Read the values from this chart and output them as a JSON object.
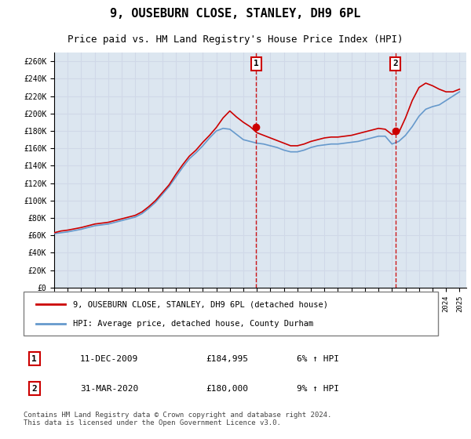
{
  "title": "9, OUSEBURN CLOSE, STANLEY, DH9 6PL",
  "subtitle": "Price paid vs. HM Land Registry's House Price Index (HPI)",
  "ylabel_ticks": [
    "£0",
    "£20K",
    "£40K",
    "£60K",
    "£80K",
    "£100K",
    "£120K",
    "£140K",
    "£160K",
    "£180K",
    "£200K",
    "£220K",
    "£240K",
    "£260K"
  ],
  "ylim": [
    0,
    270000
  ],
  "yticks": [
    0,
    20000,
    40000,
    60000,
    80000,
    100000,
    120000,
    140000,
    160000,
    180000,
    200000,
    220000,
    240000,
    260000
  ],
  "xlim_start": 1995,
  "xlim_end": 2025.5,
  "xticks": [
    1995,
    1996,
    1997,
    1998,
    1999,
    2000,
    2001,
    2002,
    2003,
    2004,
    2005,
    2006,
    2007,
    2008,
    2009,
    2010,
    2011,
    2012,
    2013,
    2014,
    2015,
    2016,
    2017,
    2018,
    2019,
    2020,
    2021,
    2022,
    2023,
    2024,
    2025
  ],
  "grid_color": "#d0d8e8",
  "bg_color": "#e8eef8",
  "plot_bg": "#dce6f0",
  "sale1_x": 2009.95,
  "sale1_y": 184995,
  "sale1_label": "1",
  "sale1_date": "11-DEC-2009",
  "sale1_price": "£184,995",
  "sale1_hpi": "6% ↑ HPI",
  "sale2_x": 2020.25,
  "sale2_y": 180000,
  "sale2_label": "2",
  "sale2_date": "31-MAR-2020",
  "sale2_price": "£180,000",
  "sale2_hpi": "9% ↑ HPI",
  "line_red_color": "#cc0000",
  "line_blue_color": "#6699cc",
  "legend_label_red": "9, OUSEBURN CLOSE, STANLEY, DH9 6PL (detached house)",
  "legend_label_blue": "HPI: Average price, detached house, County Durham",
  "footer": "Contains HM Land Registry data © Crown copyright and database right 2024.\nThis data is licensed under the Open Government Licence v3.0.",
  "hpi_years": [
    1995,
    1995.5,
    1996,
    1996.5,
    1997,
    1997.5,
    1998,
    1998.5,
    1999,
    1999.5,
    2000,
    2000.5,
    2001,
    2001.5,
    2002,
    2002.5,
    2003,
    2003.5,
    2004,
    2004.5,
    2005,
    2005.5,
    2006,
    2006.5,
    2007,
    2007.5,
    2008,
    2008.5,
    2009,
    2009.5,
    2010,
    2010.5,
    2011,
    2011.5,
    2012,
    2012.5,
    2013,
    2013.5,
    2014,
    2014.5,
    2015,
    2015.5,
    2016,
    2016.5,
    2017,
    2017.5,
    2018,
    2018.5,
    2019,
    2019.5,
    2020,
    2020.5,
    2021,
    2021.5,
    2022,
    2022.5,
    2023,
    2023.5,
    2024,
    2024.5,
    2025
  ],
  "hpi_values": [
    62000,
    63000,
    64000,
    65500,
    67000,
    69000,
    71000,
    72000,
    73000,
    75000,
    77000,
    79000,
    81000,
    85000,
    91000,
    98000,
    107000,
    116000,
    127000,
    138000,
    148000,
    155000,
    163000,
    172000,
    180000,
    183000,
    182000,
    176000,
    170000,
    168000,
    166000,
    165000,
    163000,
    161000,
    158000,
    156000,
    156000,
    158000,
    161000,
    163000,
    164000,
    165000,
    165000,
    166000,
    167000,
    168000,
    170000,
    172000,
    174000,
    174000,
    165000,
    168000,
    175000,
    185000,
    197000,
    205000,
    208000,
    210000,
    215000,
    220000,
    225000
  ],
  "red_years": [
    1995,
    1995.5,
    1996,
    1996.5,
    1997,
    1997.5,
    1998,
    1998.5,
    1999,
    1999.5,
    2000,
    2000.5,
    2001,
    2001.5,
    2002,
    2002.5,
    2003,
    2003.5,
    2004,
    2004.5,
    2005,
    2005.5,
    2006,
    2006.5,
    2007,
    2007.5,
    2008,
    2008.5,
    2009,
    2009.5,
    2010,
    2010.5,
    2011,
    2011.5,
    2012,
    2012.5,
    2013,
    2013.5,
    2014,
    2014.5,
    2015,
    2015.5,
    2016,
    2016.5,
    2017,
    2017.5,
    2018,
    2018.5,
    2019,
    2019.5,
    2020,
    2020.5,
    2021,
    2021.5,
    2022,
    2022.5,
    2023,
    2023.5,
    2024,
    2024.5,
    2025
  ],
  "red_values": [
    63000,
    65000,
    66000,
    67500,
    69000,
    71000,
    73000,
    74000,
    75000,
    77000,
    79000,
    81000,
    83000,
    87000,
    93000,
    100000,
    109000,
    118000,
    130000,
    141000,
    151000,
    158000,
    167000,
    175000,
    184000,
    195000,
    203000,
    196000,
    190000,
    185000,
    178000,
    175000,
    172000,
    169000,
    166000,
    163000,
    163000,
    165000,
    168000,
    170000,
    172000,
    173000,
    173000,
    174000,
    175000,
    177000,
    179000,
    181000,
    183000,
    182000,
    176000,
    178000,
    195000,
    215000,
    230000,
    235000,
    232000,
    228000,
    225000,
    225000,
    228000
  ]
}
